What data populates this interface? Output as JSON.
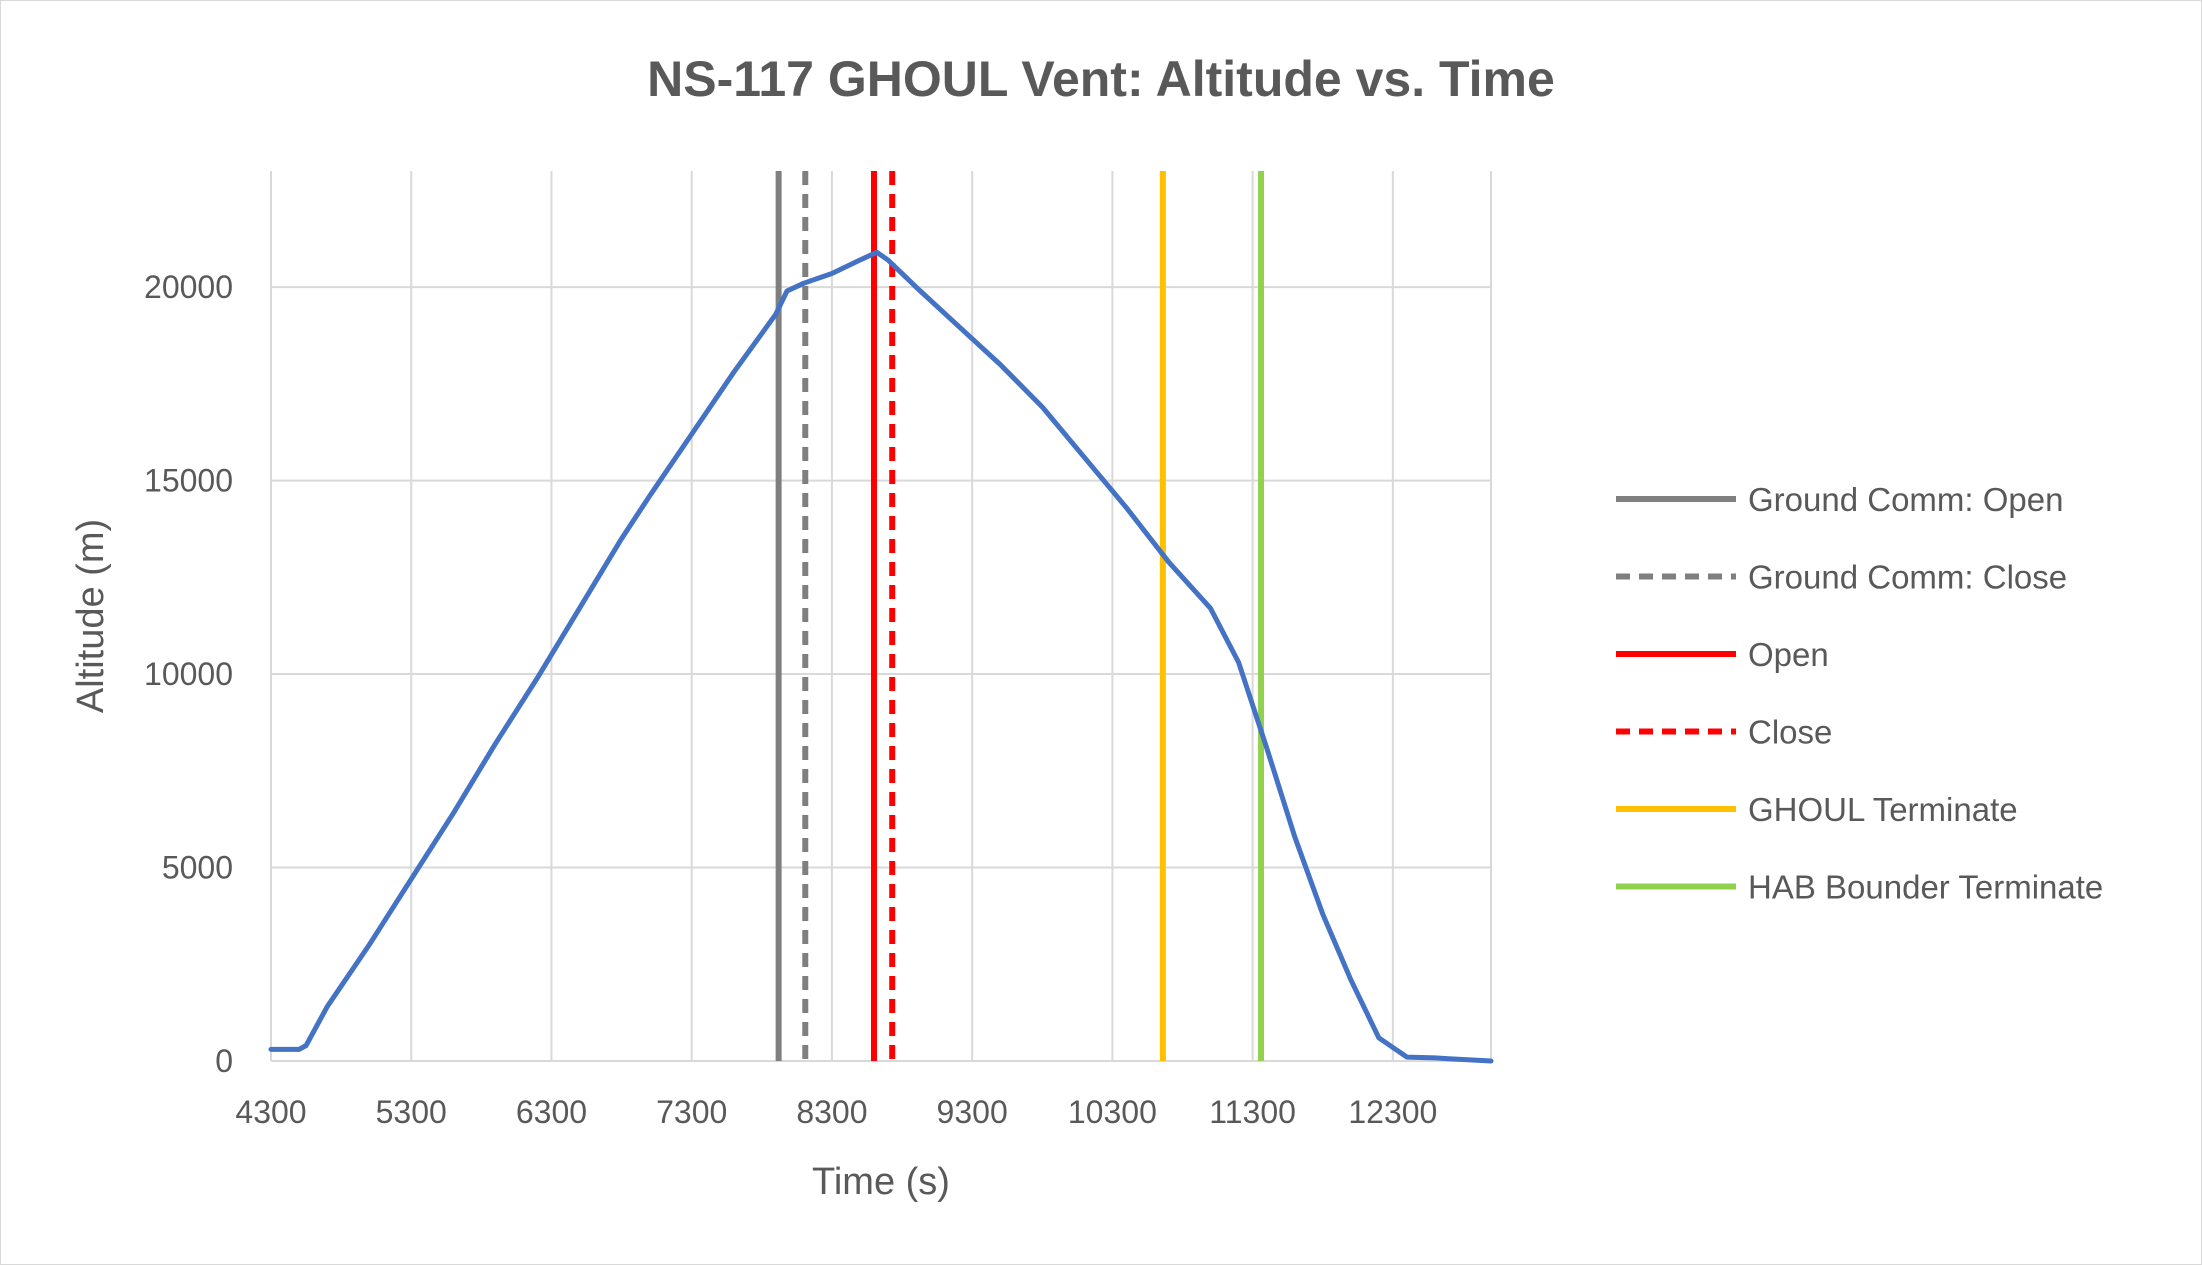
{
  "chart_data": {
    "type": "line",
    "title": "NS-117 GHOUL Vent: Altitude vs. Time",
    "xlabel": "Time (s)",
    "ylabel": "Altitude (m)",
    "xlim": [
      4300,
      13000
    ],
    "ylim": [
      0,
      23000
    ],
    "x_ticks": [
      4300,
      5300,
      6300,
      7300,
      8300,
      9300,
      10300,
      11300,
      12300
    ],
    "y_ticks": [
      0,
      5000,
      10000,
      15000,
      20000
    ],
    "grid": true,
    "legend_position": "right",
    "series": [
      {
        "name": "",
        "color": "#4472C4",
        "x": [
          4300,
          4500,
          4550,
          4700,
          5000,
          5300,
          5600,
          5900,
          6200,
          6500,
          6800,
          7000,
          7300,
          7600,
          7900,
          7980,
          8100,
          8300,
          8500,
          8620,
          8700,
          8900,
          9200,
          9500,
          9800,
          10100,
          10400,
          10700,
          11000,
          11200,
          11300,
          11400,
          11600,
          11800,
          12000,
          12200,
          12400,
          12600,
          12700,
          12800,
          13000
        ],
        "y": [
          300,
          300,
          400,
          1400,
          3000,
          4700,
          6400,
          8200,
          9900,
          11700,
          13500,
          14600,
          16200,
          17800,
          19300,
          19900,
          20100,
          20350,
          20700,
          20900,
          20700,
          20000,
          19000,
          18000,
          16900,
          15600,
          14300,
          12900,
          11700,
          10300,
          9200,
          8100,
          5800,
          3800,
          2100,
          600,
          100,
          80,
          60,
          40,
          0
        ]
      }
    ],
    "reference_lines": [
      {
        "name": "Ground Comm: Open",
        "x": 7920,
        "color": "#7F7F7F",
        "style": "solid"
      },
      {
        "name": "Ground Comm: Close",
        "x": 8110,
        "color": "#7F7F7F",
        "style": "dashed"
      },
      {
        "name": "Open",
        "x": 8600,
        "color": "#FF0000",
        "style": "solid"
      },
      {
        "name": "Close",
        "x": 8730,
        "color": "#FF0000",
        "style": "dashed"
      },
      {
        "name": "GHOUL Terminate",
        "x": 10660,
        "color": "#FFC000",
        "style": "solid"
      },
      {
        "name": "HAB Bounder Terminate",
        "x": 11360,
        "color": "#92D050",
        "style": "solid"
      }
    ]
  }
}
